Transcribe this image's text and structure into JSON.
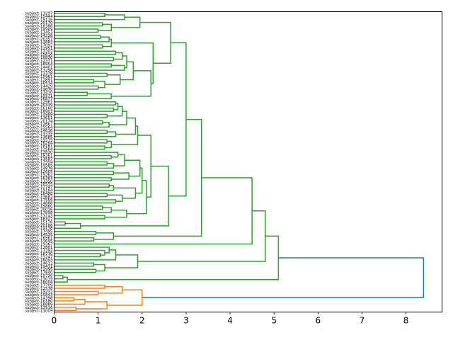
{
  "chart_data": {
    "type": "dendrogram",
    "orientation": "left",
    "title": "",
    "xlabel": "",
    "ylabel": "",
    "xlim": [
      0,
      8.82
    ],
    "x_ticks": [
      0,
      1,
      2,
      3,
      4,
      5,
      6,
      7,
      8
    ],
    "x_tick_labels": [
      "0",
      "1",
      "2",
      "3",
      "4",
      "5",
      "6",
      "7",
      "8"
    ],
    "colors": {
      "above_threshold": "#1f77b4",
      "clusters": [
        "#2ca02c",
        "#ff7f0e"
      ]
    },
    "tree": [
      8.4,
      [
        5.1,
        [
          4.8,
          [
            4.5,
            [
              3.35,
              [
                3.0,
                [
                  2.65,
                  [
                    1.95,
                    [
                      1.6,
                      [
                        1.15,
                        "L",
                        "L"
                      ],
                      "L"
                    ],
                    [
                      1.3,
                      [
                        1.1,
                        "L",
                        "L"
                      ],
                      [
                        1.0,
                        "L",
                        "L"
                      ]
                    ]
                  ],
                  [
                    2.25,
                    [
                      1.3,
                      [
                        1.25,
                        [
                          1.05,
                          "L",
                          "L"
                        ],
                        "L"
                      ],
                      [
                        1.1,
                        "L",
                        "L"
                      ]
                    ],
                    [
                      2.2,
                      [
                        1.8,
                        [
                          1.65,
                          [
                            1.55,
                            [
                              1.4,
                              "L",
                              "L"
                            ],
                            [
                              1.35,
                              "L",
                              "L"
                            ]
                          ],
                          [
                            1.6,
                            [
                              1.3,
                              "L",
                              "L"
                            ],
                            "L"
                          ]
                        ],
                        [
                          1.5,
                          [
                            1.2,
                            "L",
                            "L"
                          ],
                          [
                            1.15,
                            [
                              0.9,
                              "L",
                              "L"
                            ],
                            [
                              1.0,
                              "L",
                              "L"
                            ]
                          ]
                        ]
                      ],
                      [
                        1.3,
                        [
                          0.75,
                          "L",
                          "L"
                        ],
                        "L"
                      ]
                    ]
                  ]
                ],
                [
                  2.6,
                  [
                    2.2,
                    [
                      1.9,
                      [
                        1.85,
                        [
                          1.65,
                          [
                            1.55,
                            [
                              1.45,
                              [
                                1.4,
                                "L",
                                "L"
                              ],
                              [
                                1.35,
                                "L",
                                "L"
                              ]
                            ],
                            [
                              1.2,
                              "L",
                              "L"
                            ]
                          ],
                          [
                            1.25,
                            [
                              1.1,
                              "L",
                              "L"
                            ],
                            "L"
                          ]
                        ],
                        [
                          1.4,
                          [
                            1.2,
                            "L",
                            "L"
                          ],
                          "L"
                        ]
                      ],
                      [
                        1.3,
                        [
                          1.2,
                          "L",
                          "L"
                        ],
                        [
                          1.15,
                          "L",
                          "L"
                        ]
                      ]
                    ],
                    [
                      2.1,
                      [
                        2.0,
                        [
                          1.95,
                          [
                            1.6,
                            [
                              1.45,
                              "L",
                              [
                                1.3,
                                "L",
                                "L"
                              ]
                            ],
                            [
                              1.35,
                              [
                                1.2,
                                "L",
                                "L"
                              ],
                              "L"
                            ]
                          ],
                          [
                            1.7,
                            [
                              1.35,
                              "L",
                              "L"
                            ],
                            [
                              1.3,
                              "L",
                              "L"
                            ]
                          ]
                        ],
                        [
                          1.85,
                          [
                            1.35,
                            [
                              1.25,
                              "L",
                              "L"
                            ],
                            "L"
                          ],
                          [
                            1.55,
                            [
                              1.2,
                              "L",
                              "L"
                            ],
                            [
                              1.4,
                              "L",
                              "L"
                            ]
                          ]
                        ]
                      ],
                      [
                        1.65,
                        [
                          1.3,
                          [
                            1.1,
                            "L",
                            "L"
                          ],
                          "L"
                        ],
                        [
                          1.15,
                          "L",
                          "L"
                        ]
                      ]
                    ]
                  ],
                  [
                    0.6,
                    [
                      0.25,
                      "L",
                      "L"
                    ],
                    "L"
                  ]
                ]
              ],
              [
                1.35,
                [
                  0.95,
                  "L",
                  "L"
                ],
                [
                  0.9,
                  "L",
                  "L"
                ]
              ]
            ],
            "L"
          ],
          [
            1.9,
            [
              1.4,
              [
                1.25,
                "L",
                [
                  1.15,
                  "L",
                  [
                    1.05,
                    "L",
                    "L"
                  ]
                ]
              ],
              "L"
            ],
            [
              1.15,
              [
                0.9,
                "L",
                "L"
              ],
              [
                0.95,
                "L",
                "L"
              ]
            ]
          ]
        ],
        [
          0.3,
          [
            0.2,
            "L",
            "L"
          ],
          "L"
        ]
      ],
      [
        2.0,
        [
          1.55,
          [
            1.15,
            "L",
            "L"
          ],
          [
            1.0,
            "L",
            "L"
          ]
        ],
        [
          1.2,
          [
            0.7,
            [
              0.45,
              "L",
              "L"
            ],
            "L"
          ],
          [
            0.5,
            "L",
            "L"
          ]
        ]
      ]
    ],
    "leaf_labels": [
      "subject-13297",
      "subject-15444",
      "subject-19135",
      "subject-20170",
      "subject-18386",
      "subject-19909",
      "subject-12453",
      "subject-14228",
      "subject-20357",
      "subject-13883",
      "subject-17092",
      "subject-12951",
      "subject-13202",
      "subject-15616",
      "subject-19830",
      "subject-12371",
      "subject-18954",
      "subject-14401",
      "subject-17256",
      "subject-13378",
      "subject-15961",
      "subject-12891",
      "subject-16574",
      "subject-14429",
      "subject-19870",
      "subject-13470",
      "subject-15571",
      "subject-16877",
      "subject-12961",
      "subject-20339",
      "subject-16160",
      "subject-18903",
      "subject-14988",
      "subject-13651",
      "subject-20174",
      "subject-12867",
      "subject-15564",
      "subject-14636",
      "subject-19335",
      "subject-13685",
      "subject-15575",
      "subject-16264",
      "subject-18181",
      "subject-12584",
      "subject-12820",
      "subject-18261",
      "subject-13587",
      "subject-17954",
      "subject-19565",
      "subject-14878",
      "subject-12605",
      "subject-15262",
      "subject-16363",
      "subject-13350",
      "subject-18555",
      "subject-12747",
      "subject-19184",
      "subject-16488",
      "subject-13682",
      "subject-17556",
      "subject-14888",
      "subject-15860",
      "subject-20016",
      "subject-17898",
      "subject-13143",
      "subject-18327",
      "subject-15176",
      "subject-20186",
      "subject-19138",
      "subject-17495",
      "subject-14535",
      "subject-16961",
      "subject-13695",
      "subject-19367",
      "subject-12801",
      "subject-17292",
      "subject-18730",
      "subject-13247",
      "subject-16093",
      "subject-14612",
      "subject-19411",
      "subject-12995",
      "subject-17840",
      "subject-15720",
      "subject-13019",
      "subject-16004",
      "subject-17709",
      "subject-12578",
      "subject-19232",
      "subject-15843",
      "subject-14398",
      "subject-16180",
      "subject-18889",
      "subject-13516",
      "subject-13009"
    ]
  }
}
